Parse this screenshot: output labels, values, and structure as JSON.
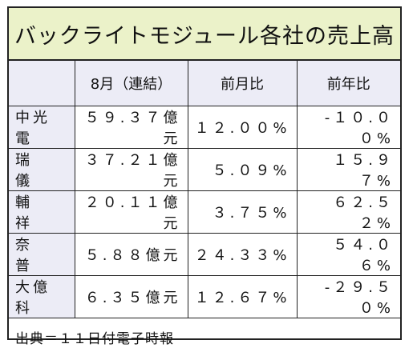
{
  "title": "バックライトモジュール各社の売上高",
  "headers": [
    "",
    "8月（連結）",
    "前月比",
    "前年比"
  ],
  "rows": [
    {
      "company": "中光電",
      "sales": "５９.３７億元",
      "mom": "１２.００%",
      "yoy": "-１０.００%"
    },
    {
      "company": "瑞　儀",
      "sales": "３７.２１億元",
      "mom": "５.０９%",
      "yoy": "１５.９７%"
    },
    {
      "company": "輔　祥",
      "sales": "２０.１１億元",
      "mom": "３.７５%",
      "yoy": "６２.５２%"
    },
    {
      "company": "奈　普",
      "sales": "５.８８億元",
      "mom": "２４.３３%",
      "yoy": "５４.０６%"
    },
    {
      "company": "大億科",
      "sales": "６.３５億元",
      "mom": "１２.６７%",
      "yoy": "-２９.５０%"
    }
  ],
  "source": "出典＝１１日付電子時報",
  "colors": {
    "title_bg": "#ebf2c9",
    "header_bg": "#ececf6",
    "border": "#222222"
  }
}
